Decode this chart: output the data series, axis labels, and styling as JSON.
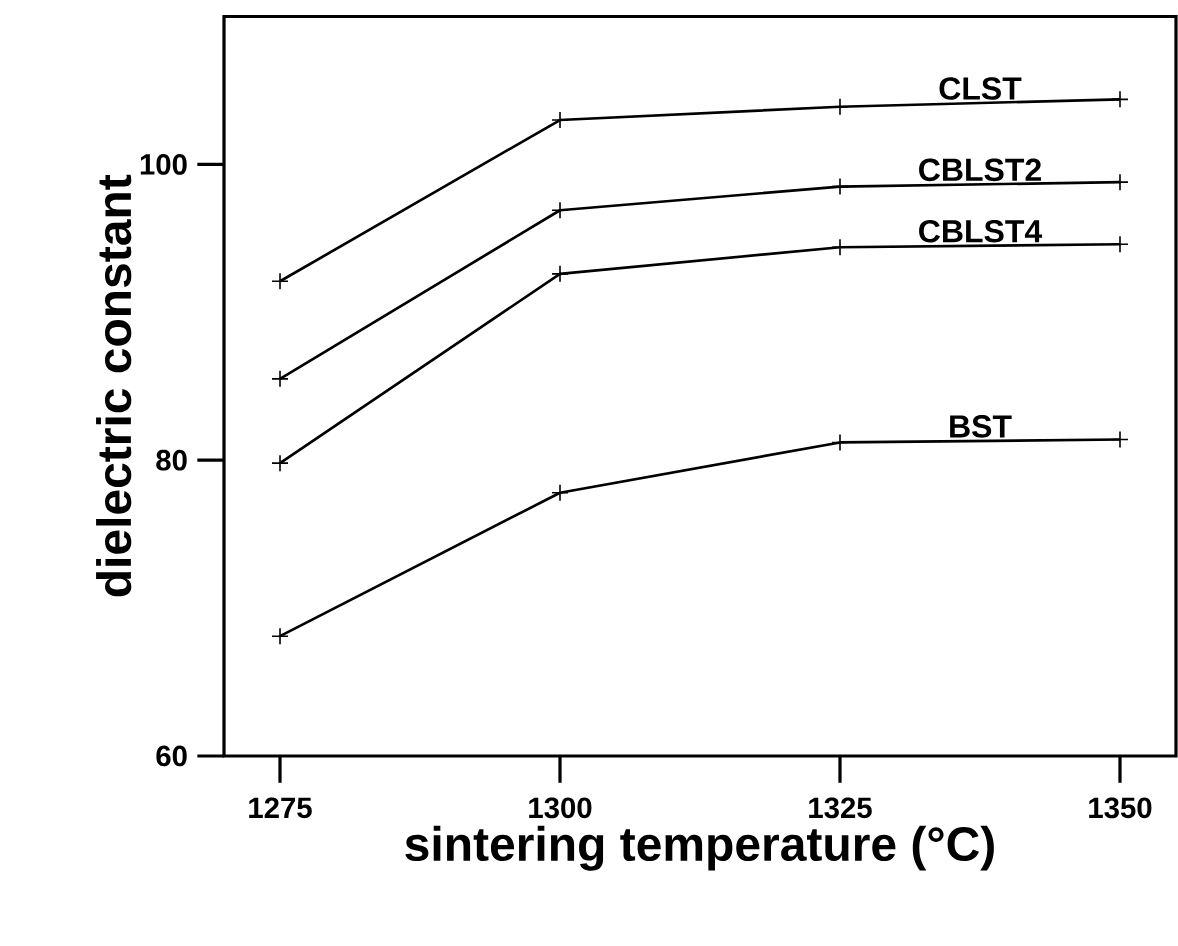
{
  "chart_data": {
    "type": "line",
    "xlabel": "sintering temperature (°C)",
    "ylabel": "dielectric  constant",
    "x": [
      1275,
      1300,
      1325,
      1350
    ],
    "series": [
      {
        "name": "CLST",
        "color": "#000000",
        "values": [
          92.1,
          103.0,
          103.9,
          104.4
        ]
      },
      {
        "name": "CBLST2",
        "color": "#000000",
        "values": [
          85.5,
          96.9,
          98.5,
          98.8
        ]
      },
      {
        "name": "CBLST4",
        "color": "#000000",
        "values": [
          79.8,
          92.6,
          94.4,
          94.6
        ]
      },
      {
        "name": "BST",
        "color": "#000000",
        "values": [
          68.1,
          77.8,
          81.2,
          81.4
        ]
      }
    ],
    "xlim": [
      1270,
      1355
    ],
    "ylim": [
      60,
      110
    ],
    "xticks": [
      1275,
      1300,
      1325,
      1350
    ],
    "yticks": [
      60,
      80,
      100
    ],
    "marker": "cross",
    "line_style": "solid",
    "grid": false,
    "legend": false
  }
}
